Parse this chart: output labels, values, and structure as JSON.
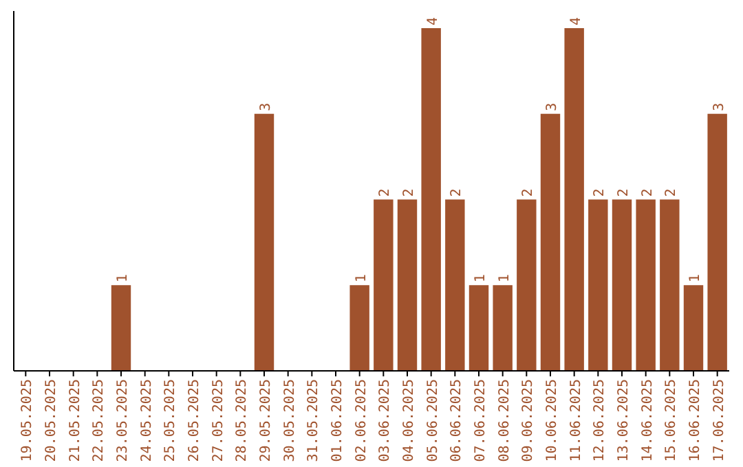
{
  "chart_data": {
    "type": "bar",
    "categories": [
      "19.05.2025",
      "20.05.2025",
      "21.05.2025",
      "22.05.2025",
      "23.05.2025",
      "24.05.2025",
      "25.05.2025",
      "26.05.2025",
      "27.05.2025",
      "28.05.2025",
      "29.05.2025",
      "30.05.2025",
      "31.05.2025",
      "01.06.2025",
      "02.06.2025",
      "03.06.2025",
      "04.06.2025",
      "05.06.2025",
      "06.06.2025",
      "07.06.2025",
      "08.06.2025",
      "09.06.2025",
      "10.06.2025",
      "11.06.2025",
      "12.06.2025",
      "13.06.2025",
      "14.06.2025",
      "15.06.2025",
      "16.06.2025",
      "17.06.2025"
    ],
    "values": [
      0,
      0,
      0,
      0,
      1,
      0,
      0,
      0,
      0,
      0,
      3,
      0,
      0,
      0,
      1,
      2,
      2,
      4,
      2,
      1,
      1,
      2,
      3,
      4,
      2,
      2,
      2,
      2,
      1,
      3
    ],
    "value_labels": [
      null,
      null,
      null,
      null,
      "1",
      null,
      null,
      null,
      null,
      null,
      "3",
      null,
      null,
      null,
      "1",
      "2",
      "2",
      "4",
      "2",
      "1",
      "1",
      "2",
      "3",
      "4",
      "2",
      "2",
      "2",
      "2",
      "1",
      "3"
    ],
    "color": "#a0522d"
  }
}
